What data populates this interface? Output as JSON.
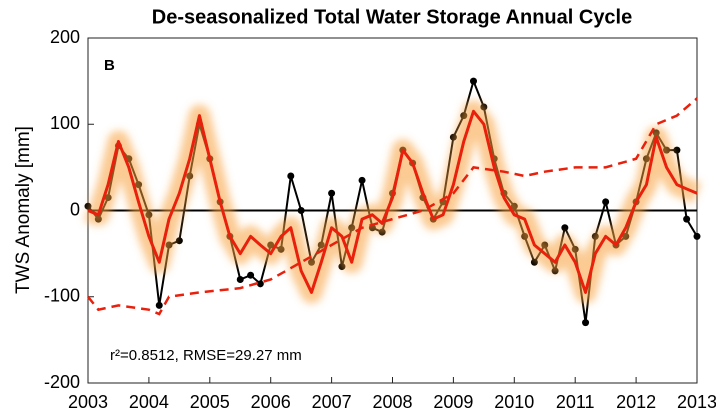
{
  "chart_data": {
    "type": "line",
    "title": "De-seasonalized Total Water Storage Annual Cycle",
    "ylabel": "TWS Anomaly [mm]",
    "panel_label": "B",
    "annotation": "r²=0.8512, RMSE=29.27 mm",
    "xlim": [
      2003,
      2013
    ],
    "xticks": [
      2003,
      2004,
      2005,
      2006,
      2007,
      2008,
      2009,
      2010,
      2011,
      2012,
      2013
    ],
    "ylim": [
      -200,
      200
    ],
    "yticks": [
      -200,
      -100,
      0,
      100,
      200
    ],
    "reference_line": 0,
    "series": [
      {
        "color": "#000000",
        "style": "markers",
        "x": [
          2003,
          2003.17,
          2003.33,
          2003.5,
          2003.67,
          2003.83,
          2004,
          2004.17,
          2004.33,
          2004.5,
          2004.67,
          2004.83,
          2005,
          2005.17,
          2005.33,
          2005.5,
          2005.67,
          2005.83,
          2006,
          2006.17,
          2006.33,
          2006.5,
          2006.67,
          2006.83,
          2007,
          2007.17,
          2007.33,
          2007.5,
          2007.67,
          2007.83,
          2008,
          2008.17,
          2008.33,
          2008.5,
          2008.67,
          2008.83,
          2009,
          2009.17,
          2009.33,
          2009.5,
          2009.67,
          2009.83,
          2010,
          2010.17,
          2010.33,
          2010.5,
          2010.67,
          2010.83,
          2011,
          2011.17,
          2011.33,
          2011.5,
          2011.67,
          2011.83,
          2012,
          2012.17,
          2012.33,
          2012.5,
          2012.67,
          2012.83,
          2013
        ],
        "values": [
          5,
          -10,
          15,
          75,
          60,
          30,
          -5,
          -110,
          -40,
          -35,
          40,
          100,
          60,
          10,
          -30,
          -80,
          -75,
          -85,
          -40,
          -45,
          40,
          0,
          -60,
          -40,
          20,
          -65,
          -20,
          35,
          -20,
          -25,
          20,
          70,
          55,
          15,
          -10,
          10,
          85,
          110,
          150,
          120,
          60,
          20,
          5,
          -30,
          -60,
          -40,
          -70,
          -20,
          -45,
          -130,
          -30,
          10,
          -40,
          -30,
          10,
          60,
          90,
          70,
          70,
          -10,
          -30
        ]
      },
      {
        "color": "#e8200c",
        "style": "band",
        "x": [
          2003,
          2003.17,
          2003.33,
          2003.5,
          2003.67,
          2003.83,
          2004,
          2004.17,
          2004.33,
          2004.5,
          2004.67,
          2004.83,
          2005,
          2005.17,
          2005.33,
          2005.5,
          2005.67,
          2005.83,
          2006,
          2006.17,
          2006.33,
          2006.5,
          2006.67,
          2006.83,
          2007,
          2007.17,
          2007.33,
          2007.5,
          2007.67,
          2007.83,
          2008,
          2008.17,
          2008.33,
          2008.5,
          2008.67,
          2008.83,
          2009,
          2009.17,
          2009.33,
          2009.5,
          2009.67,
          2009.83,
          2010,
          2010.17,
          2010.33,
          2010.5,
          2010.67,
          2010.83,
          2011,
          2011.17,
          2011.33,
          2011.5,
          2011.67,
          2011.83,
          2012,
          2012.17,
          2012.33,
          2012.5,
          2012.67,
          2012.83,
          2013
        ],
        "values": [
          0,
          -5,
          30,
          80,
          50,
          10,
          -30,
          -60,
          -10,
          20,
          60,
          110,
          60,
          10,
          -30,
          -50,
          -30,
          -40,
          -50,
          -30,
          -20,
          -70,
          -95,
          -60,
          -20,
          -30,
          -60,
          -10,
          -5,
          -15,
          15,
          70,
          55,
          20,
          -10,
          -5,
          30,
          80,
          115,
          100,
          50,
          15,
          -5,
          -10,
          -40,
          -50,
          -60,
          -40,
          -60,
          -95,
          -50,
          -30,
          -40,
          -20,
          10,
          30,
          85,
          50,
          30,
          25,
          20
        ]
      },
      {
        "color": "#e8200c",
        "style": "dashed",
        "x": [
          2003,
          2003.17,
          2003.5,
          2004,
          2004.17,
          2004.33,
          2004.83,
          2005.5,
          2006,
          2006.5,
          2007,
          2007.5,
          2008,
          2008.5,
          2009,
          2009.33,
          2009.83,
          2010.17,
          2010.5,
          2011,
          2011.5,
          2012,
          2012.33,
          2012.67,
          2013
        ],
        "values": [
          -100,
          -115,
          -110,
          -115,
          -120,
          -100,
          -95,
          -90,
          -80,
          -60,
          -40,
          -20,
          -10,
          0,
          20,
          50,
          45,
          40,
          45,
          50,
          50,
          60,
          100,
          110,
          130
        ]
      }
    ]
  }
}
